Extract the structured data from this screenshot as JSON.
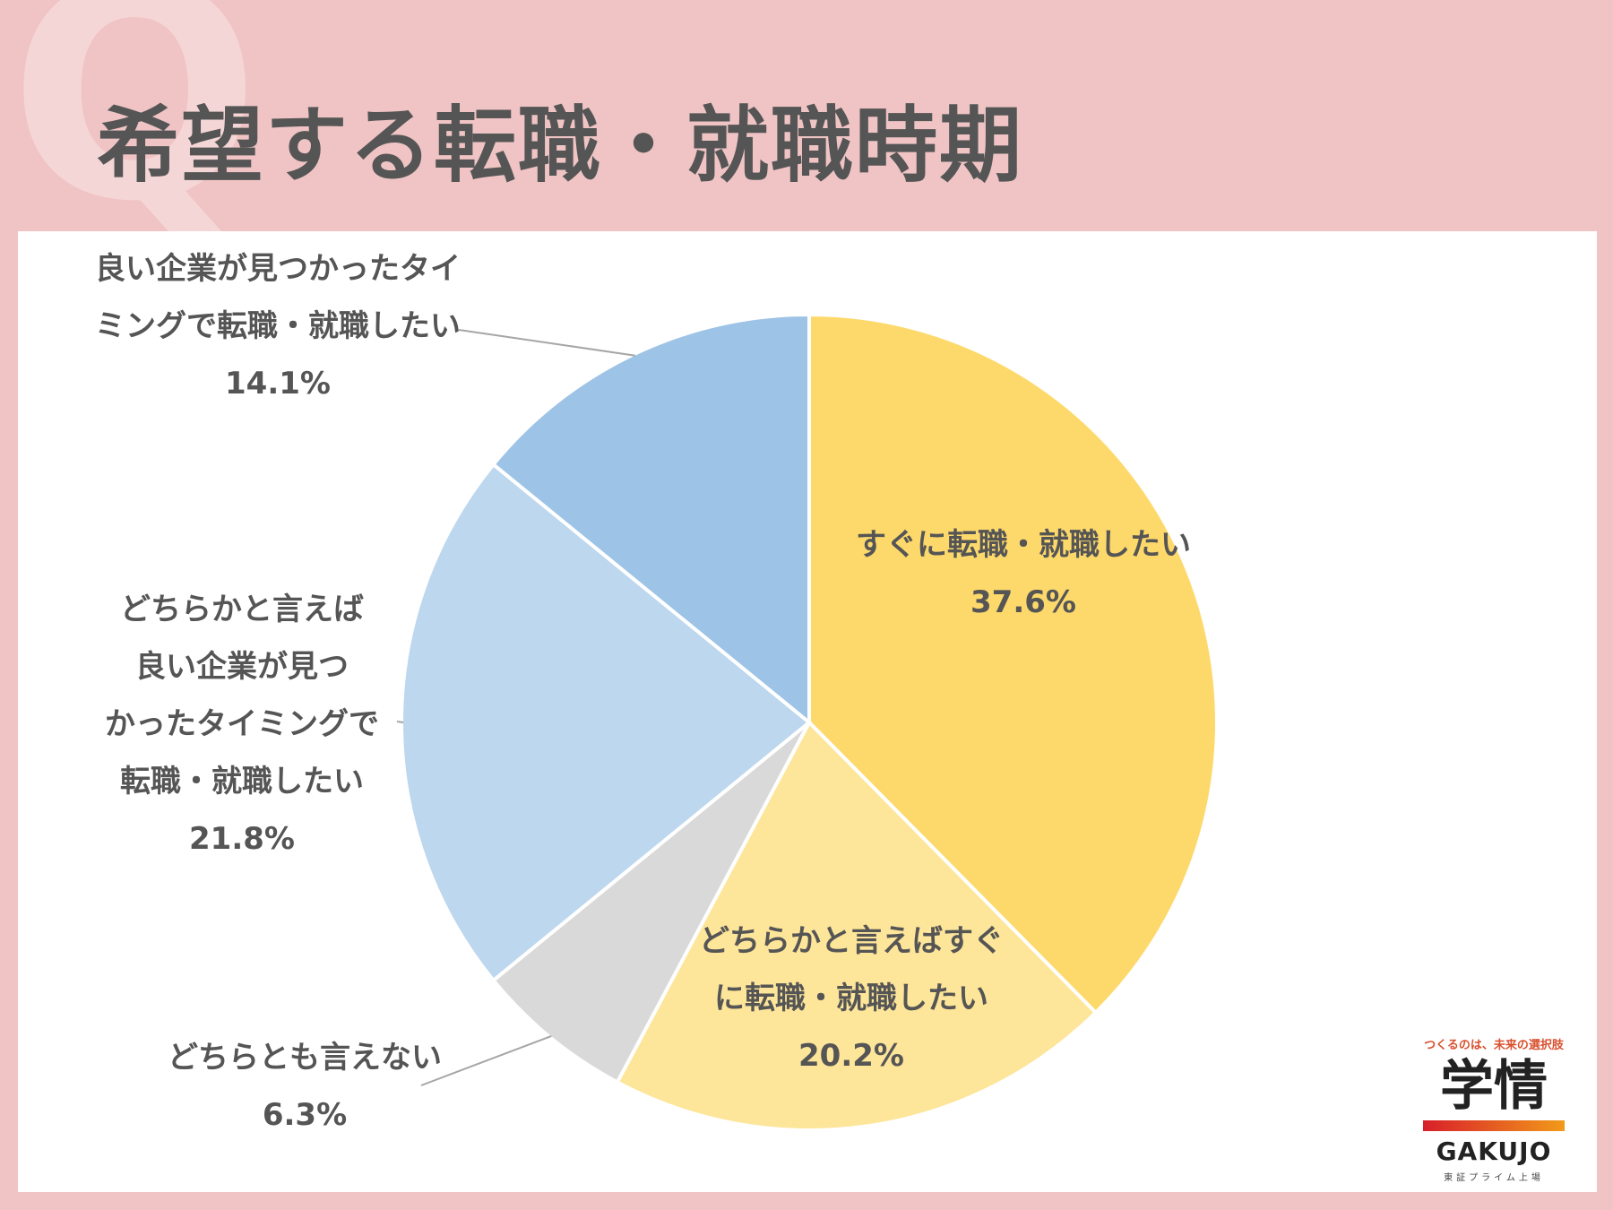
{
  "header": {
    "q_letter": "Q",
    "title": "希望する転職・就職時期"
  },
  "chart_data": {
    "type": "pie",
    "title": "希望する転職・就職時期",
    "unit": "%",
    "slices": [
      {
        "label": "すぐに転職・就職したい",
        "value": 37.6,
        "value_text": "37.6%",
        "color": "#fdd96b"
      },
      {
        "label": "どちらかと言えばすぐに転職・就職したい",
        "value": 20.2,
        "value_text": "20.2%",
        "color": "#fde599"
      },
      {
        "label": "どちらとも言えない",
        "value": 6.3,
        "value_text": "6.3%",
        "color": "#d9d9d9"
      },
      {
        "label": "どちらかと言えば良い企業が見つかったタイミングで転職・就職したい",
        "value": 21.8,
        "value_text": "21.8%",
        "color": "#bdd7ee"
      },
      {
        "label": "良い企業が見つかったタイミングで転職・就職したい",
        "value": 14.1,
        "value_text": "14.1%",
        "color": "#9dc3e6"
      }
    ],
    "label_lines": {
      "s0": [
        "すぐに転職・就職したい"
      ],
      "s1": [
        "どちらかと言えばすぐ",
        "に転職・就職したい"
      ],
      "s2": [
        "どちらとも言えない"
      ],
      "s3": [
        "どちらかと言えば",
        "良い企業が見つ",
        "かったタイミングで",
        "転職・就職したい"
      ],
      "s4": [
        "良い企業が見つかったタイ",
        "ミングで転職・就職したい"
      ]
    }
  },
  "logo": {
    "tagline": "つくるのは、未来の選択肢",
    "kanji": "学情",
    "english": "GAKUJO",
    "sub": "東証プライム上場"
  }
}
